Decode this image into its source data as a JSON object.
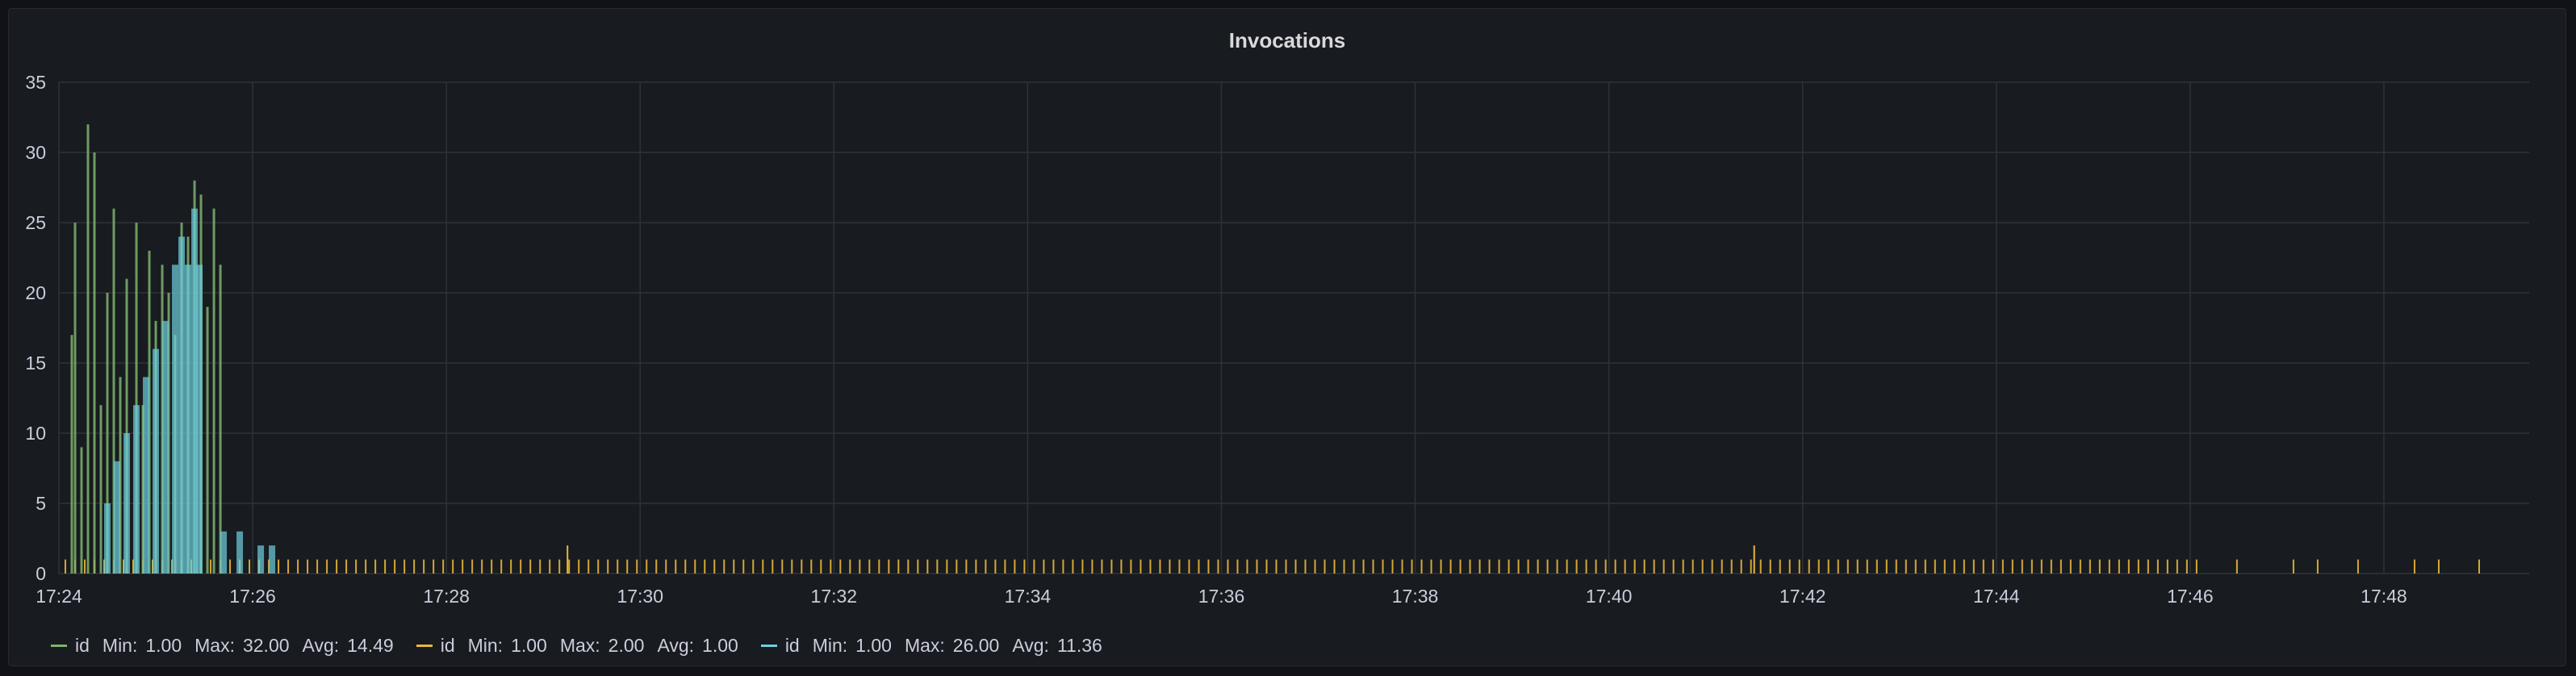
{
  "panel": {
    "title": "Invocations"
  },
  "chart_data": {
    "type": "bar",
    "title": "Invocations",
    "xlabel": "",
    "ylabel": "",
    "ylim": [
      0,
      35
    ],
    "y_ticks": [
      "0",
      "5",
      "10",
      "15",
      "20",
      "25",
      "30",
      "35"
    ],
    "x_ticks": [
      "17:24",
      "17:26",
      "17:28",
      "17:30",
      "17:32",
      "17:34",
      "17:36",
      "17:38",
      "17:40",
      "17:42",
      "17:44",
      "17:46",
      "17:48"
    ],
    "x_range": [
      "17:24",
      "17:49:30"
    ],
    "grid": true,
    "legend_position": "bottom-left",
    "series": [
      {
        "name": "id",
        "color": "#7eb26d",
        "stats": {
          "min": "1.00",
          "max": "32.00",
          "avg": "14.49"
        },
        "points": [
          [
            "17:24:08",
            17
          ],
          [
            "17:24:10",
            25
          ],
          [
            "17:24:14",
            9
          ],
          [
            "17:24:18",
            32
          ],
          [
            "17:24:22",
            30
          ],
          [
            "17:24:26",
            12
          ],
          [
            "17:24:30",
            20
          ],
          [
            "17:24:34",
            26
          ],
          [
            "17:24:38",
            14
          ],
          [
            "17:24:42",
            21
          ],
          [
            "17:24:48",
            25
          ],
          [
            "17:24:52",
            12
          ],
          [
            "17:24:56",
            23
          ],
          [
            "17:25:00",
            18
          ],
          [
            "17:25:04",
            22
          ],
          [
            "17:25:08",
            20
          ],
          [
            "17:25:12",
            17
          ],
          [
            "17:25:16",
            25
          ],
          [
            "17:25:20",
            24
          ],
          [
            "17:25:24",
            28
          ],
          [
            "17:25:28",
            27
          ],
          [
            "17:25:32",
            19
          ],
          [
            "17:25:36",
            26
          ],
          [
            "17:25:40",
            22
          ]
        ]
      },
      {
        "name": "id",
        "color": "#eab839",
        "stats": {
          "min": "1.00",
          "max": "2.00",
          "avg": "1.00"
        },
        "pattern": "value 1 roughly every 6 seconds from 17:24 to 17:49:10, thinning after 17:46",
        "spikes": [
          [
            "17:29:15",
            2
          ],
          [
            "17:41:30",
            2
          ]
        ]
      },
      {
        "name": "id",
        "color": "#6ed0e0",
        "stats": {
          "min": "1.00",
          "max": "26.00",
          "avg": "11.36"
        },
        "points": [
          [
            "17:24:30",
            5
          ],
          [
            "17:24:36",
            8
          ],
          [
            "17:24:42",
            10
          ],
          [
            "17:24:48",
            12
          ],
          [
            "17:24:54",
            14
          ],
          [
            "17:25:00",
            16
          ],
          [
            "17:25:06",
            18
          ],
          [
            "17:25:12",
            22
          ],
          [
            "17:25:16",
            24
          ],
          [
            "17:25:20",
            22
          ],
          [
            "17:25:24",
            26
          ],
          [
            "17:25:27",
            22
          ],
          [
            "17:25:42",
            3
          ],
          [
            "17:25:52",
            3
          ],
          [
            "17:26:05",
            2
          ],
          [
            "17:26:12",
            2
          ]
        ]
      }
    ]
  }
}
